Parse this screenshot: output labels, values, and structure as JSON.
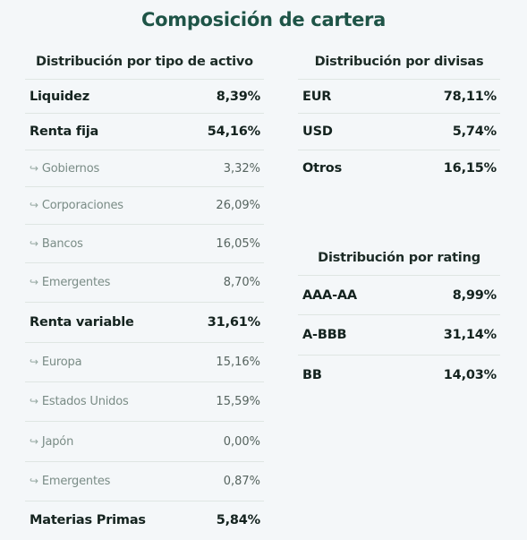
{
  "title": "Composición de cartera",
  "asset_distribution": {
    "heading": "Distribución por tipo de activo",
    "rows": [
      {
        "label": "Liquidez",
        "value": "8,39%"
      },
      {
        "label": "Renta fija",
        "value": "54,16%"
      },
      {
        "label": "Gobiernos",
        "value": "3,32%"
      },
      {
        "label": "Corporaciones",
        "value": "26,09%"
      },
      {
        "label": "Bancos",
        "value": "16,05%"
      },
      {
        "label": "Emergentes",
        "value": "8,70%"
      },
      {
        "label": "Renta variable",
        "value": "31,61%"
      },
      {
        "label": "Europa",
        "value": "15,16%"
      },
      {
        "label": "Estados Unidos",
        "value": "15,59%"
      },
      {
        "label": "Japón",
        "value": "0,00%"
      },
      {
        "label": "Emergentes",
        "value": "0,87%"
      },
      {
        "label": "Materias Primas",
        "value": "5,84%"
      }
    ]
  },
  "currency_distribution": {
    "heading": "Distribución por divisas",
    "rows": [
      {
        "label": "EUR",
        "value": "78,11%"
      },
      {
        "label": "USD",
        "value": "5,74%"
      },
      {
        "label": "Otros",
        "value": "16,15%"
      }
    ]
  },
  "rating_distribution": {
    "heading": "Distribución por rating",
    "rows": [
      {
        "label": "AAA-AA",
        "value": "8,99%"
      },
      {
        "label": "A-BBB",
        "value": "31,14%"
      },
      {
        "label": "BB",
        "value": "14,03%"
      }
    ]
  },
  "icons": {
    "sub_item": "subitem-arrow-icon"
  },
  "colors": {
    "title": "#1e5447",
    "background": "#f4f7f9",
    "divider": "#dfe6e3",
    "sub_text": "#7a8c86"
  }
}
